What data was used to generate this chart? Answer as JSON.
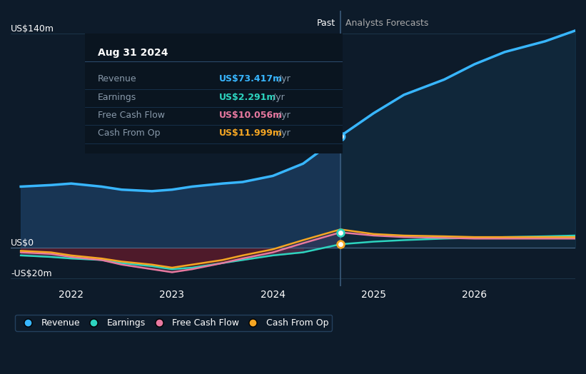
{
  "bg_color": "#0d1b2a",
  "plot_bg_color": "#0d1b2a",
  "title_text": "Aug 31 2024",
  "tooltip_labels": [
    "Revenue",
    "Earnings",
    "Free Cash Flow",
    "Cash From Op"
  ],
  "tooltip_values": [
    "US$73.417m /yr",
    "US$2.291m /yr",
    "US$10.056m /yr",
    "US$11.999m /yr"
  ],
  "tooltip_colors": [
    "#38b6ff",
    "#2dd4bf",
    "#e879a0",
    "#f5a623"
  ],
  "ylabel_top": "US$140m",
  "ylabel_zero": "US$0",
  "ylabel_neg": "-US$20m",
  "past_label": "Past",
  "forecast_label": "Analysts Forecasts",
  "divider_x": 2024.67,
  "xlim": [
    2021.4,
    2027.0
  ],
  "ylim": [
    -25,
    155
  ],
  "grid_color": "#1e3a4f",
  "legend_items": [
    "Revenue",
    "Earnings",
    "Free Cash Flow",
    "Cash From Op"
  ],
  "legend_colors": [
    "#38b6ff",
    "#2dd4bf",
    "#e879a0",
    "#f5a623"
  ],
  "revenue_x": [
    2021.5,
    2021.8,
    2022.0,
    2022.3,
    2022.5,
    2022.8,
    2023.0,
    2023.2,
    2023.5,
    2023.7,
    2024.0,
    2024.3,
    2024.67,
    2025.0,
    2025.3,
    2025.7,
    2026.0,
    2026.3,
    2026.7,
    2027.0
  ],
  "revenue_y": [
    40,
    41,
    42,
    40,
    38,
    37,
    38,
    40,
    42,
    43,
    47,
    55,
    73,
    88,
    100,
    110,
    120,
    128,
    135,
    142
  ],
  "earnings_x": [
    2021.5,
    2021.8,
    2022.0,
    2022.3,
    2022.5,
    2022.8,
    2023.0,
    2023.2,
    2023.5,
    2023.7,
    2024.0,
    2024.3,
    2024.67,
    2025.0,
    2025.3,
    2025.7,
    2026.0,
    2026.3,
    2026.7,
    2027.0
  ],
  "earnings_y": [
    -5,
    -6,
    -7,
    -8,
    -10,
    -12,
    -14,
    -13,
    -10,
    -8,
    -5,
    -3,
    2.3,
    4,
    5,
    6,
    6.5,
    7,
    7.5,
    8
  ],
  "fcf_x": [
    2021.5,
    2021.8,
    2022.0,
    2022.3,
    2022.5,
    2022.8,
    2023.0,
    2023.2,
    2023.5,
    2023.7,
    2024.0,
    2024.3,
    2024.67,
    2025.0,
    2025.3,
    2025.7,
    2026.0,
    2026.3,
    2026.7,
    2027.0
  ],
  "fcf_y": [
    -3,
    -4,
    -6,
    -8,
    -11,
    -14,
    -16,
    -14,
    -10,
    -7,
    -3,
    3,
    10.056,
    8,
    7,
    6.5,
    6,
    6,
    6,
    6
  ],
  "cfop_x": [
    2021.5,
    2021.8,
    2022.0,
    2022.3,
    2022.5,
    2022.8,
    2023.0,
    2023.2,
    2023.5,
    2023.7,
    2024.0,
    2024.3,
    2024.67,
    2025.0,
    2025.3,
    2025.7,
    2026.0,
    2026.3,
    2026.7,
    2027.0
  ],
  "cfop_y": [
    -2,
    -3,
    -5,
    -7,
    -9,
    -11,
    -13,
    -11,
    -8,
    -5,
    -1,
    5,
    12,
    9,
    8,
    7.5,
    7,
    7,
    7,
    7
  ],
  "xticks": [
    2022,
    2023,
    2024,
    2025,
    2026
  ],
  "yticks_labels": [
    "US$140m",
    "US$0",
    "-US$20m"
  ],
  "yticks_values": [
    140,
    0,
    -20
  ]
}
